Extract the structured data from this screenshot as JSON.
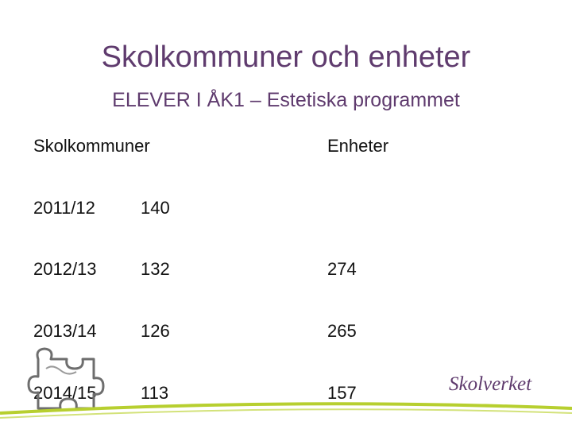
{
  "slide": {
    "title": "Skolkommuner och enheter",
    "subtitle": "ELEVER I ÅK1 – Estetiska programmet"
  },
  "table": {
    "headers": [
      "Skolkommuner",
      "Enheter"
    ],
    "rows": [
      {
        "year": "2011/12",
        "skolkommuner": "140",
        "enheter": ""
      },
      {
        "year": "2012/13",
        "skolkommuner": "132",
        "enheter": "274"
      },
      {
        "year": "2013/14",
        "skolkommuner": "126",
        "enheter": "265"
      },
      {
        "year": "2014/15",
        "skolkommuner": "113",
        "enheter": "157"
      }
    ]
  },
  "brand": {
    "logo_text": "Skolverket",
    "puzzle_icon": "puzzle-piece-icon"
  },
  "colors": {
    "title": "#5f3b6e",
    "accent_green": "#b7cf2f"
  }
}
